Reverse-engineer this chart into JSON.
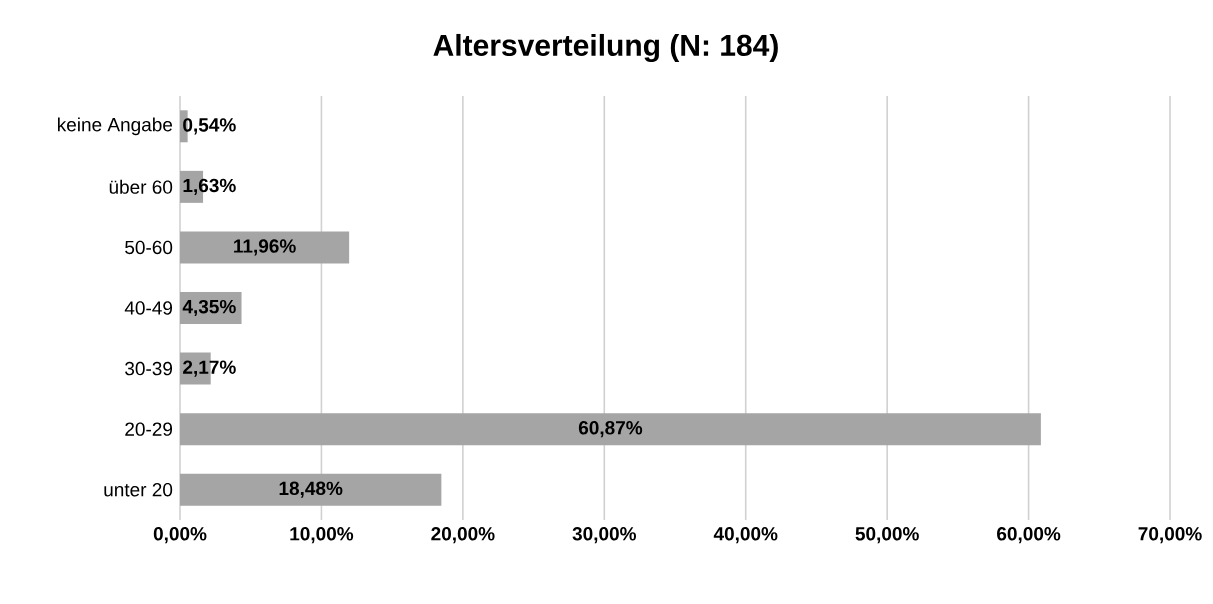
{
  "chart_data": {
    "type": "bar",
    "orientation": "horizontal",
    "title": "Altersverteilung (N: 184)",
    "categories": [
      "keine Angabe",
      "über 60",
      "50-60",
      "40-49",
      "30-39",
      "20-29",
      "unter 20"
    ],
    "values": [
      0.54,
      1.63,
      11.96,
      4.35,
      2.17,
      60.87,
      18.48
    ],
    "value_labels": [
      "0,54%",
      "1,63%",
      "11,96%",
      "4,35%",
      "2,17%",
      "60,87%",
      "18,48%"
    ],
    "color": "#a5a5a5",
    "xlim": [
      0,
      70
    ],
    "xticks": [
      {
        "value": 0,
        "label": "0,00%"
      },
      {
        "value": 10,
        "label": "10,00%"
      },
      {
        "value": 20,
        "label": "20,00%"
      },
      {
        "value": 30,
        "label": "30,00%"
      },
      {
        "value": 40,
        "label": "40,00%"
      },
      {
        "value": 50,
        "label": "50,00%"
      },
      {
        "value": 60,
        "label": "60,00%"
      },
      {
        "value": 70,
        "label": "70,00%"
      }
    ],
    "grid": "x"
  }
}
